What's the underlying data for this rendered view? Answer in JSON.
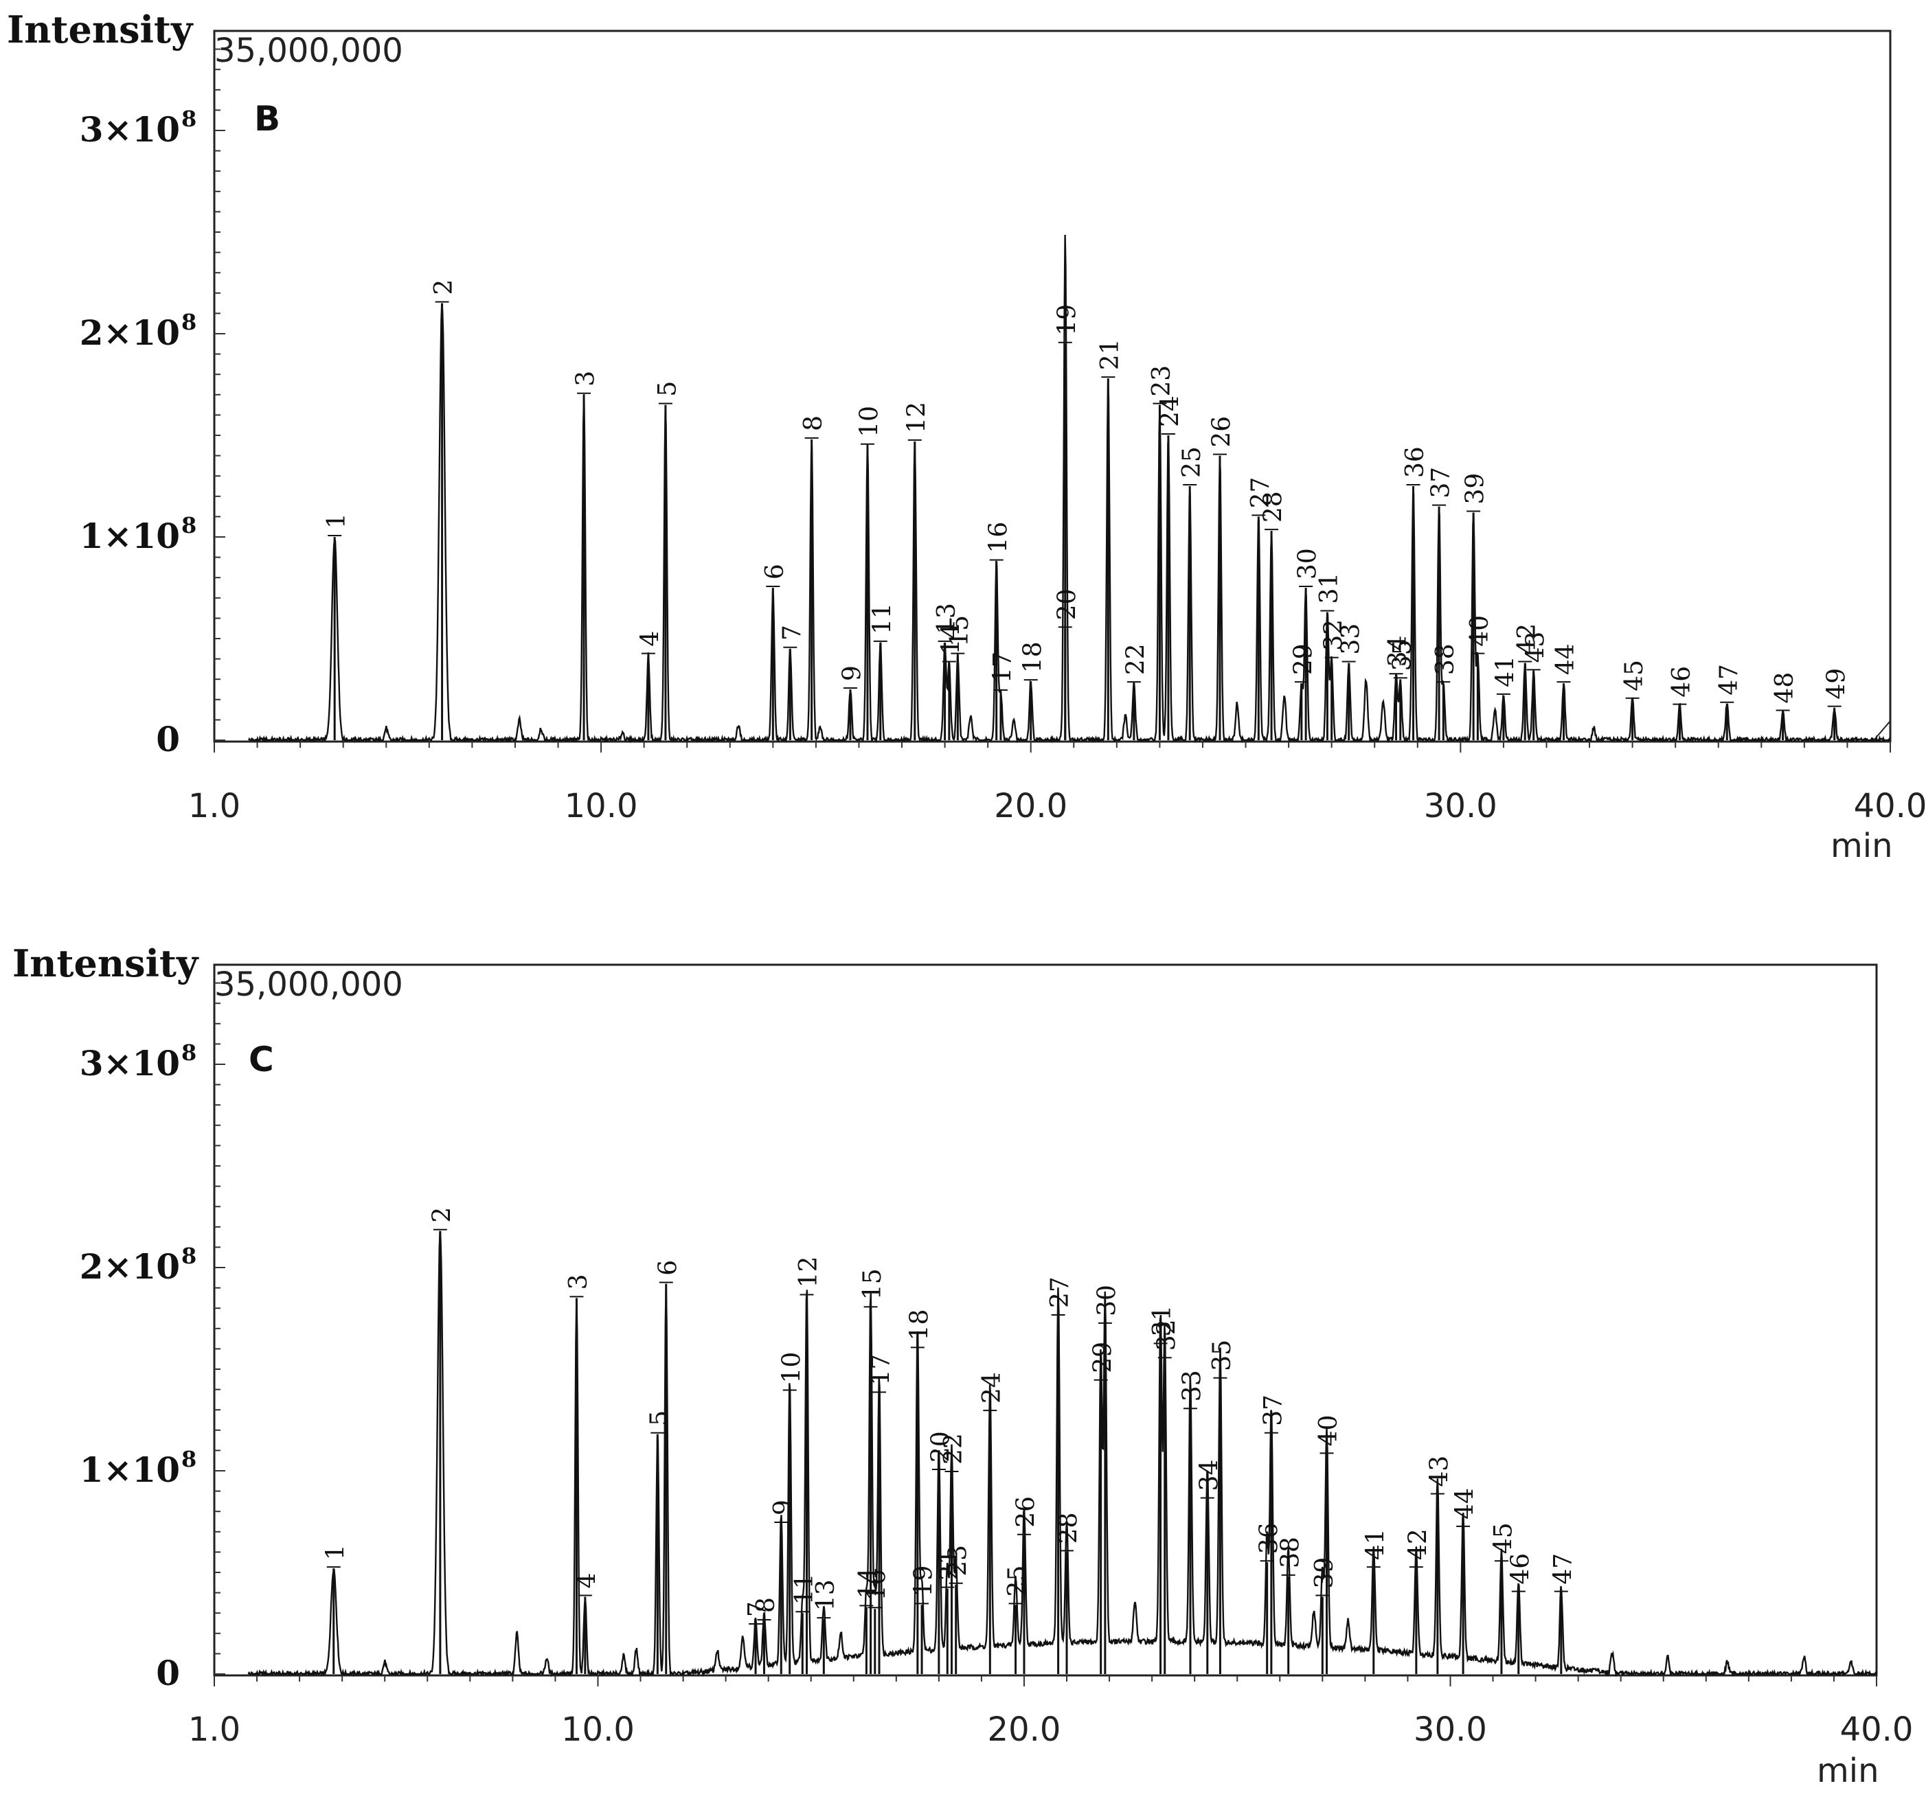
{
  "chart_data": [
    {
      "type": "line",
      "panel": "B",
      "ylabel": "Intensity",
      "scale_text": "35,000,000",
      "xunit": "min",
      "xlim": [
        1.0,
        40.0
      ],
      "ylim": [
        0,
        350000000
      ],
      "xticks": [
        "1.0",
        "10.0",
        "20.0",
        "30.0",
        "40.0"
      ],
      "yticks": [
        {
          "mant": "3×10",
          "exp": "8",
          "value": 300000000
        },
        {
          "mant": "2×10",
          "exp": "8",
          "value": 200000000
        },
        {
          "mant": "1×10",
          "exp": "8",
          "value": 100000000
        },
        {
          "mant": "0",
          "exp": "",
          "value": 0
        }
      ],
      "peaks": [
        {
          "label": "1",
          "x": 3.8,
          "y": 100000000
        },
        {
          "label": "2",
          "x": 6.3,
          "y": 215000000
        },
        {
          "label": "3",
          "x": 9.6,
          "y": 170000000
        },
        {
          "label": "4",
          "x": 11.1,
          "y": 42000000
        },
        {
          "label": "5",
          "x": 11.5,
          "y": 165000000
        },
        {
          "label": "6",
          "x": 14.0,
          "y": 75000000
        },
        {
          "label": "7",
          "x": 14.4,
          "y": 45000000
        },
        {
          "label": "8",
          "x": 14.9,
          "y": 148000000
        },
        {
          "label": "9",
          "x": 15.8,
          "y": 25000000
        },
        {
          "label": "10",
          "x": 16.2,
          "y": 145000000
        },
        {
          "label": "11",
          "x": 16.5,
          "y": 48000000
        },
        {
          "label": "12",
          "x": 17.3,
          "y": 147000000
        },
        {
          "label": "13",
          "x": 18.0,
          "y": 48000000
        },
        {
          "label": "14",
          "x": 18.1,
          "y": 38000000
        },
        {
          "label": "15",
          "x": 18.3,
          "y": 42000000
        },
        {
          "label": "16",
          "x": 19.2,
          "y": 88000000
        },
        {
          "label": "17",
          "x": 19.3,
          "y": 24000000
        },
        {
          "label": "18",
          "x": 20.0,
          "y": 29000000
        },
        {
          "label": "19",
          "x": 20.8,
          "y": 195000000
        },
        {
          "label": "20",
          "x": 20.8,
          "y": 55000000
        },
        {
          "label": "21",
          "x": 21.8,
          "y": 178000000
        },
        {
          "label": "22",
          "x": 22.4,
          "y": 28000000
        },
        {
          "label": "23",
          "x": 23.0,
          "y": 165000000
        },
        {
          "label": "24",
          "x": 23.2,
          "y": 150000000
        },
        {
          "label": "25",
          "x": 23.7,
          "y": 125000000
        },
        {
          "label": "26",
          "x": 24.4,
          "y": 140000000
        },
        {
          "label": "27",
          "x": 25.3,
          "y": 110000000
        },
        {
          "label": "28",
          "x": 25.6,
          "y": 103000000
        },
        {
          "label": "29",
          "x": 26.3,
          "y": 28000000
        },
        {
          "label": "30",
          "x": 26.4,
          "y": 75000000
        },
        {
          "label": "31",
          "x": 26.9,
          "y": 63000000
        },
        {
          "label": "32",
          "x": 27.0,
          "y": 40000000
        },
        {
          "label": "33",
          "x": 27.4,
          "y": 38000000
        },
        {
          "label": "34",
          "x": 28.5,
          "y": 32000000
        },
        {
          "label": "35",
          "x": 28.6,
          "y": 30000000
        },
        {
          "label": "36",
          "x": 28.9,
          "y": 125000000
        },
        {
          "label": "37",
          "x": 29.5,
          "y": 115000000
        },
        {
          "label": "38",
          "x": 29.6,
          "y": 28000000
        },
        {
          "label": "39",
          "x": 30.3,
          "y": 112000000
        },
        {
          "label": "40",
          "x": 30.4,
          "y": 42000000
        },
        {
          "label": "41",
          "x": 31.0,
          "y": 22000000
        },
        {
          "label": "42",
          "x": 31.5,
          "y": 38000000
        },
        {
          "label": "43",
          "x": 31.7,
          "y": 34000000
        },
        {
          "label": "44",
          "x": 32.4,
          "y": 28000000
        },
        {
          "label": "45",
          "x": 34.0,
          "y": 20000000
        },
        {
          "label": "46",
          "x": 35.1,
          "y": 17000000
        },
        {
          "label": "47",
          "x": 36.2,
          "y": 18000000
        },
        {
          "label": "48",
          "x": 37.5,
          "y": 14000000
        },
        {
          "label": "49",
          "x": 38.7,
          "y": 16000000
        }
      ],
      "minor_peaks": [
        {
          "x": 1.7,
          "y": 3000000
        },
        {
          "x": 5.0,
          "y": 6000000
        },
        {
          "x": 8.1,
          "y": 10000000
        },
        {
          "x": 8.6,
          "y": 6000000
        },
        {
          "x": 10.5,
          "y": 4000000
        },
        {
          "x": 13.2,
          "y": 8000000
        },
        {
          "x": 15.1,
          "y": 7000000
        },
        {
          "x": 18.6,
          "y": 12000000
        },
        {
          "x": 19.6,
          "y": 10000000
        },
        {
          "x": 22.2,
          "y": 12000000
        },
        {
          "x": 24.8,
          "y": 18000000
        },
        {
          "x": 25.9,
          "y": 22000000
        },
        {
          "x": 27.8,
          "y": 30000000
        },
        {
          "x": 28.2,
          "y": 20000000
        },
        {
          "x": 30.8,
          "y": 15000000
        },
        {
          "x": 33.1,
          "y": 6000000
        }
      ]
    },
    {
      "type": "line",
      "panel": "C",
      "ylabel": "Intensity",
      "scale_text": "35,000,000",
      "xunit": "min",
      "xlim": [
        1.0,
        40.0
      ],
      "ylim": [
        0,
        350000000
      ],
      "xticks": [
        "1.0",
        "10.0",
        "20.0",
        "30.0",
        "40.0"
      ],
      "yticks": [
        {
          "mant": "3×10",
          "exp": "8",
          "value": 300000000
        },
        {
          "mant": "2×10",
          "exp": "8",
          "value": 200000000
        },
        {
          "mant": "1×10",
          "exp": "8",
          "value": 100000000
        },
        {
          "mant": "0",
          "exp": "",
          "value": 0
        }
      ],
      "peaks": [
        {
          "label": "1",
          "x": 3.8,
          "y": 52000000
        },
        {
          "label": "2",
          "x": 6.3,
          "y": 218000000
        },
        {
          "label": "3",
          "x": 9.5,
          "y": 185000000
        },
        {
          "label": "4",
          "x": 9.7,
          "y": 38000000
        },
        {
          "label": "5",
          "x": 11.4,
          "y": 118000000
        },
        {
          "label": "6",
          "x": 11.6,
          "y": 192000000
        },
        {
          "label": "7",
          "x": 13.7,
          "y": 24000000
        },
        {
          "label": "8",
          "x": 13.9,
          "y": 26000000
        },
        {
          "label": "9",
          "x": 14.3,
          "y": 74000000
        },
        {
          "label": "10",
          "x": 14.5,
          "y": 139000000
        },
        {
          "label": "11",
          "x": 14.8,
          "y": 30000000
        },
        {
          "label": "12",
          "x": 14.9,
          "y": 186000000
        },
        {
          "label": "13",
          "x": 15.3,
          "y": 27000000
        },
        {
          "label": "14",
          "x": 16.3,
          "y": 33000000
        },
        {
          "label": "15",
          "x": 16.4,
          "y": 180000000
        },
        {
          "label": "16",
          "x": 16.5,
          "y": 32000000
        },
        {
          "label": "17",
          "x": 16.6,
          "y": 138000000
        },
        {
          "label": "18",
          "x": 17.5,
          "y": 160000000
        },
        {
          "label": "19",
          "x": 17.6,
          "y": 34000000
        },
        {
          "label": "20",
          "x": 18.0,
          "y": 100000000
        },
        {
          "label": "21",
          "x": 18.2,
          "y": 42000000
        },
        {
          "label": "22",
          "x": 18.3,
          "y": 99000000
        },
        {
          "label": "23",
          "x": 18.4,
          "y": 44000000
        },
        {
          "label": "24",
          "x": 19.2,
          "y": 129000000
        },
        {
          "label": "25",
          "x": 19.8,
          "y": 34000000
        },
        {
          "label": "26",
          "x": 20.0,
          "y": 68000000
        },
        {
          "label": "27",
          "x": 20.8,
          "y": 176000000
        },
        {
          "label": "28",
          "x": 21.0,
          "y": 60000000
        },
        {
          "label": "29",
          "x": 21.8,
          "y": 144000000
        },
        {
          "label": "30",
          "x": 21.9,
          "y": 172000000
        },
        {
          "label": "31",
          "x": 23.2,
          "y": 162000000
        },
        {
          "label": "32",
          "x": 23.3,
          "y": 155000000
        },
        {
          "label": "33",
          "x": 23.9,
          "y": 130000000
        },
        {
          "label": "34",
          "x": 24.3,
          "y": 86000000
        },
        {
          "label": "35",
          "x": 24.6,
          "y": 145000000
        },
        {
          "label": "36",
          "x": 25.7,
          "y": 55000000
        },
        {
          "label": "37",
          "x": 25.8,
          "y": 118000000
        },
        {
          "label": "38",
          "x": 26.2,
          "y": 48000000
        },
        {
          "label": "39",
          "x": 27.0,
          "y": 38000000
        },
        {
          "label": "40",
          "x": 27.1,
          "y": 108000000
        },
        {
          "label": "41",
          "x": 28.2,
          "y": 52000000
        },
        {
          "label": "42",
          "x": 29.2,
          "y": 52000000
        },
        {
          "label": "43",
          "x": 29.7,
          "y": 88000000
        },
        {
          "label": "44",
          "x": 30.3,
          "y": 72000000
        },
        {
          "label": "45",
          "x": 31.2,
          "y": 55000000
        },
        {
          "label": "46",
          "x": 31.6,
          "y": 40000000
        },
        {
          "label": "47",
          "x": 32.6,
          "y": 40000000
        }
      ],
      "minor_peaks": [
        {
          "x": 1.7,
          "y": 4000000
        },
        {
          "x": 5.0,
          "y": 6000000
        },
        {
          "x": 8.1,
          "y": 20000000
        },
        {
          "x": 8.8,
          "y": 8000000
        },
        {
          "x": 10.6,
          "y": 9000000
        },
        {
          "x": 10.9,
          "y": 12000000
        },
        {
          "x": 12.8,
          "y": 10000000
        },
        {
          "x": 13.4,
          "y": 16000000
        },
        {
          "x": 15.7,
          "y": 12000000
        },
        {
          "x": 22.6,
          "y": 20000000
        },
        {
          "x": 26.8,
          "y": 18000000
        },
        {
          "x": 27.6,
          "y": 14000000
        },
        {
          "x": 33.8,
          "y": 10000000
        },
        {
          "x": 35.1,
          "y": 8000000
        },
        {
          "x": 36.5,
          "y": 6000000
        },
        {
          "x": 38.3,
          "y": 9000000
        },
        {
          "x": 39.4,
          "y": 6000000
        }
      ]
    }
  ]
}
